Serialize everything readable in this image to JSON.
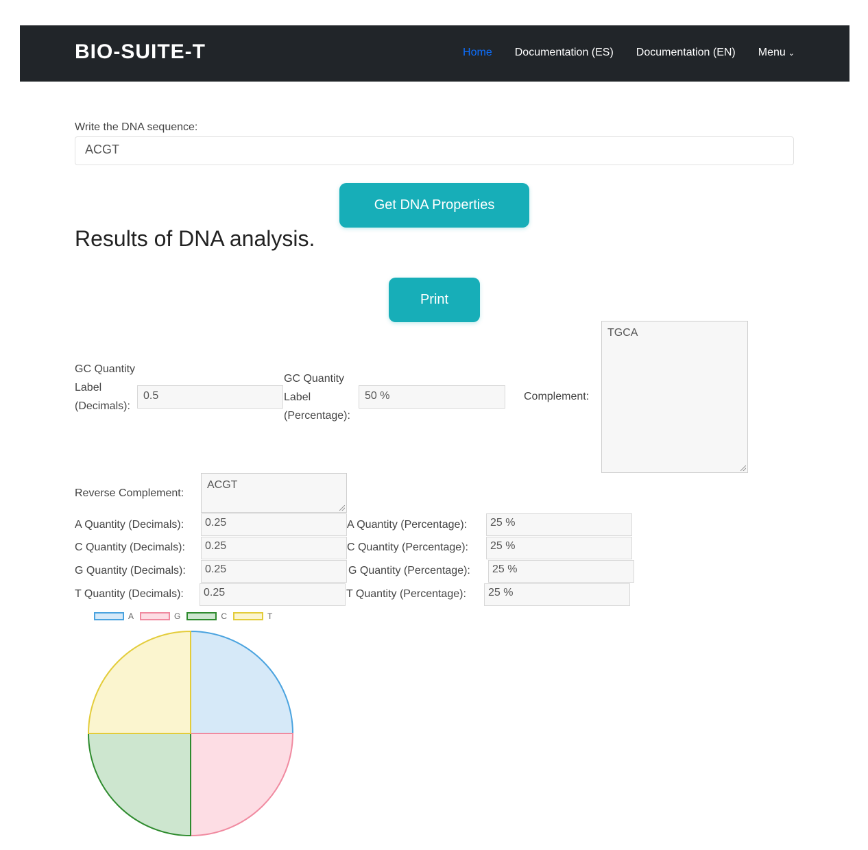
{
  "navbar": {
    "brand": "BIO-SUITE-T",
    "links": [
      {
        "label": "Home",
        "active": true
      },
      {
        "label": "Documentation (ES)"
      },
      {
        "label": "Documentation (EN)"
      },
      {
        "label": "Menu"
      }
    ]
  },
  "form": {
    "sequence_label": "Write the DNA sequence:",
    "sequence_value": "ACGT",
    "submit_label": "Get DNA Properties"
  },
  "results": {
    "heading": "Results of DNA analysis.",
    "print_label": "Print",
    "gc_decimals_label": "GC Quantity Label (Decimals):",
    "gc_decimals_value": "0.5",
    "gc_percentage_label": "GC Quantity Label (Percentage):",
    "gc_percentage_value": "50 %",
    "complement_label": "Complement:",
    "complement_value": "TGCA",
    "reverse_complement_label": "Reverse Complement:",
    "reverse_complement_value": "ACGT",
    "quantities": [
      {
        "dec_label": "A Quantity (Decimals):",
        "dec_value": "0.25",
        "pct_label": "A Quantity (Percentage):",
        "pct_value": "25 %"
      },
      {
        "dec_label": "C Quantity (Decimals):",
        "dec_value": "0.25",
        "pct_label": "C Quantity (Percentage):",
        "pct_value": "25 %"
      },
      {
        "dec_label": "G Quantity (Decimals):",
        "dec_value": "0.25",
        "pct_label": "G Quantity (Percentage):",
        "pct_value": "25 %"
      },
      {
        "dec_label": "T Quantity (Decimals):",
        "dec_value": "0.25",
        "pct_label": "T Quantity (Percentage):",
        "pct_value": "25 %"
      }
    ]
  },
  "chart_data": {
    "type": "pie",
    "categories": [
      "A",
      "G",
      "C",
      "T"
    ],
    "values": [
      0.25,
      0.25,
      0.25,
      0.25
    ],
    "colors": {
      "A": {
        "fill": "#d6e9f8",
        "stroke": "#4aa3df"
      },
      "G": {
        "fill": "#fddde4",
        "stroke": "#f08aa0"
      },
      "C": {
        "fill": "#cde6cf",
        "stroke": "#2e8b2e"
      },
      "T": {
        "fill": "#fbf5cf",
        "stroke": "#e3cc3a"
      }
    },
    "legend": "top-left"
  }
}
